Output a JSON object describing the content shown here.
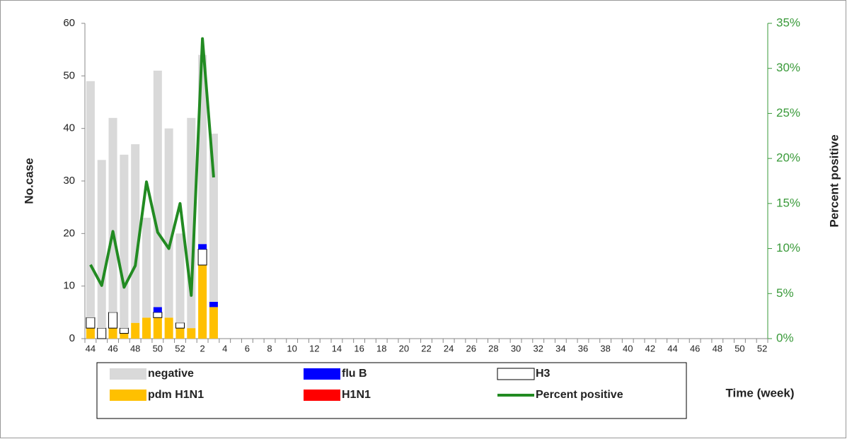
{
  "chart_data": {
    "type": "bar",
    "x_label": "Time (week)",
    "y_label": "No.case",
    "y2_label": "Percent positive",
    "categories": [
      "44",
      null,
      "46",
      null,
      "48",
      null,
      "50",
      null,
      "52",
      null,
      "2",
      null,
      "4",
      null,
      "6",
      null,
      "8",
      null,
      "10",
      null,
      "12",
      null,
      "14",
      null,
      "16",
      null,
      "18",
      null,
      "20",
      null,
      "22",
      null,
      "24",
      null,
      "26",
      null,
      "28",
      null,
      "30",
      null,
      "32",
      null,
      "34",
      null,
      "36",
      null,
      "38",
      null,
      "40",
      null,
      "42",
      null,
      "44",
      null,
      "46",
      null,
      "48",
      null,
      "50",
      null,
      "52"
    ],
    "series": [
      {
        "name": "pdm H1N1",
        "color": "#ffc000",
        "values": [
          2,
          0,
          2,
          1,
          3,
          4,
          4,
          4,
          2,
          2,
          14,
          6,
          null,
          null,
          null,
          null,
          null,
          null,
          null,
          null,
          null,
          null,
          null,
          null,
          null,
          null,
          null,
          null,
          null,
          null,
          null,
          null,
          null,
          null,
          null,
          null,
          null,
          null,
          null,
          null,
          null,
          null,
          null,
          null,
          null,
          null,
          null,
          null,
          null,
          null,
          null,
          null,
          null,
          null,
          null,
          null,
          null,
          null,
          null,
          null,
          null
        ]
      },
      {
        "name": "H1N1",
        "color": "#ff0000",
        "values": [
          0,
          0,
          0,
          0,
          0,
          0,
          0,
          0,
          0,
          0,
          0,
          0,
          null,
          null,
          null,
          null,
          null,
          null,
          null,
          null,
          null,
          null,
          null,
          null,
          null,
          null,
          null,
          null,
          null,
          null,
          null,
          null,
          null,
          null,
          null,
          null,
          null,
          null,
          null,
          null,
          null,
          null,
          null,
          null,
          null,
          null,
          null,
          null,
          null,
          null,
          null,
          null,
          null,
          null,
          null,
          null,
          null,
          null,
          null,
          null,
          null
        ]
      },
      {
        "name": "H3",
        "color": "#ffffff",
        "values": [
          2,
          2,
          3,
          1,
          0,
          0,
          1,
          0,
          1,
          0,
          3,
          0,
          null,
          null,
          null,
          null,
          null,
          null,
          null,
          null,
          null,
          null,
          null,
          null,
          null,
          null,
          null,
          null,
          null,
          null,
          null,
          null,
          null,
          null,
          null,
          null,
          null,
          null,
          null,
          null,
          null,
          null,
          null,
          null,
          null,
          null,
          null,
          null,
          null,
          null,
          null,
          null,
          null,
          null,
          null,
          null,
          null,
          null,
          null,
          null,
          null
        ]
      },
      {
        "name": "flu B",
        "color": "#0000ff",
        "values": [
          0,
          0,
          0,
          0,
          0,
          0,
          1,
          0,
          0,
          0,
          1,
          1,
          null,
          null,
          null,
          null,
          null,
          null,
          null,
          null,
          null,
          null,
          null,
          null,
          null,
          null,
          null,
          null,
          null,
          null,
          null,
          null,
          null,
          null,
          null,
          null,
          null,
          null,
          null,
          null,
          null,
          null,
          null,
          null,
          null,
          null,
          null,
          null,
          null,
          null,
          null,
          null,
          null,
          null,
          null,
          null,
          null,
          null,
          null,
          null,
          null
        ]
      },
      {
        "name": "negative",
        "color": "#d9d9d9",
        "values": [
          45,
          32,
          37,
          33,
          34,
          19,
          45,
          36,
          17,
          40,
          36,
          32,
          null,
          null,
          null,
          null,
          null,
          null,
          null,
          null,
          null,
          null,
          null,
          null,
          null,
          null,
          null,
          null,
          null,
          null,
          null,
          null,
          null,
          null,
          null,
          null,
          null,
          null,
          null,
          null,
          null,
          null,
          null,
          null,
          null,
          null,
          null,
          null,
          null,
          null,
          null,
          null,
          null,
          null,
          null,
          null,
          null,
          null,
          null,
          null,
          null
        ]
      },
      {
        "name": "Percent positive",
        "color": "#228b22",
        "type": "line",
        "axis": "y2",
        "values": [
          8.2,
          5.9,
          11.9,
          5.7,
          8.1,
          17.4,
          11.8,
          10,
          15,
          4.8,
          33.3,
          17.9,
          null,
          null,
          null,
          null,
          null,
          null,
          null,
          null,
          null,
          null,
          null,
          null,
          null,
          null,
          null,
          null,
          null,
          null,
          null,
          null,
          null,
          null,
          null,
          null,
          null,
          null,
          null,
          null,
          null,
          null,
          null,
          null,
          null,
          null,
          null,
          null,
          null,
          null,
          null,
          null,
          null,
          null,
          null,
          null,
          null,
          null,
          null,
          null,
          null
        ]
      }
    ],
    "ylim": [
      0,
      60
    ],
    "yticks": [
      0,
      10,
      20,
      30,
      40,
      50,
      60
    ],
    "y2lim": [
      0,
      35
    ],
    "y2ticks": [
      {
        "value": 0,
        "label": "0%"
      },
      {
        "value": 5,
        "label": "5%"
      },
      {
        "value": 10,
        "label": "10%"
      },
      {
        "value": 15,
        "label": "15%"
      },
      {
        "value": 20,
        "label": "20%"
      },
      {
        "value": 25,
        "label": "25%"
      },
      {
        "value": 30,
        "label": "30%"
      },
      {
        "value": 35,
        "label": "35%"
      }
    ],
    "stacked": true,
    "grid": false
  }
}
